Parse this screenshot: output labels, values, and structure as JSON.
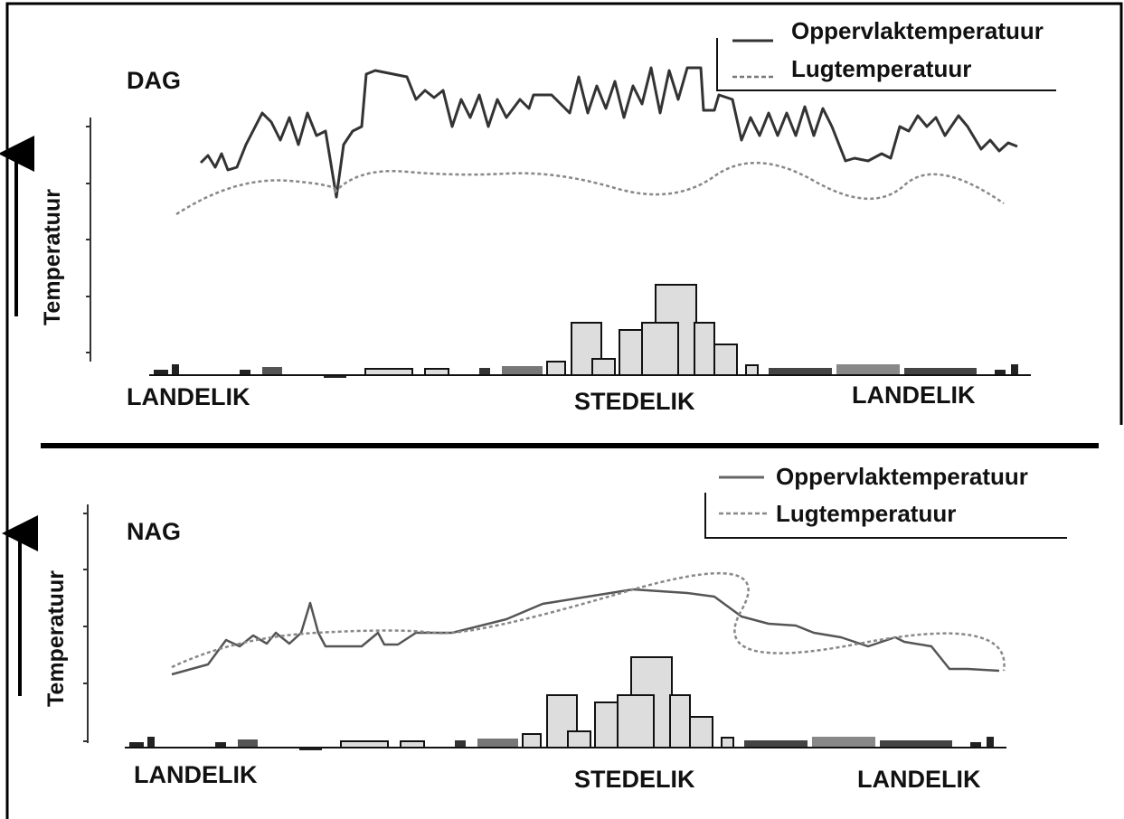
{
  "panels": [
    {
      "label": "DAG",
      "y_axis": "Temperatuur",
      "legend": [
        "Oppervlaktemperatuur",
        "Lugtemperatuur"
      ],
      "x_labels": [
        "LANDELIK",
        "STEDELIK",
        "LANDELIK"
      ]
    },
    {
      "label": "NAG",
      "y_axis": "Temperatuur",
      "legend": [
        "Oppervlaktemperatuur",
        "Lugtemperatuur"
      ],
      "x_labels": [
        "LANDELIK",
        "STEDELIK",
        "LANDELIK"
      ]
    }
  ]
}
